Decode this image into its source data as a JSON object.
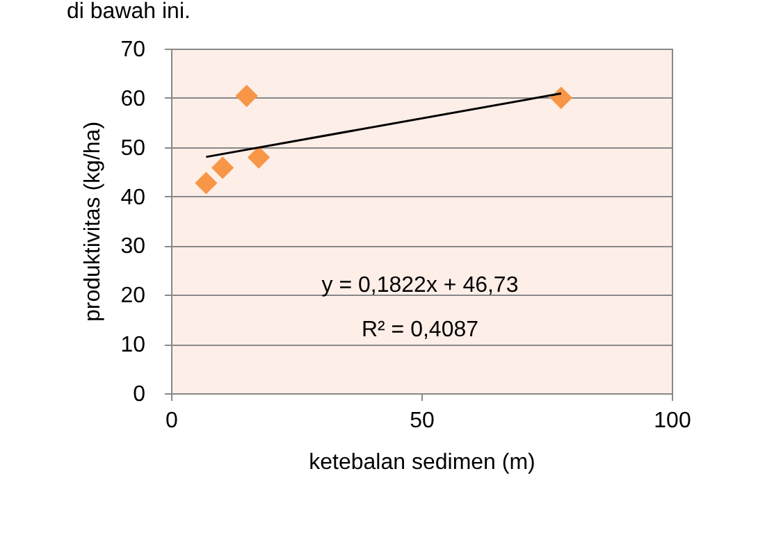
{
  "chart_data": {
    "type": "scatter",
    "xlabel": "ketebalan sedimen (m)",
    "ylabel": "produktivitas (kg/ha)",
    "annotations": [
      "di bawah ini.",
      "y = 0,1822x + 46,73",
      "R² = 0,4087"
    ],
    "series": [
      {
        "type": "scatter",
        "color": "#f79646",
        "marker": "diamond",
        "x": [
          7.0,
          10.3,
          15.1,
          17.5,
          77.9
        ],
        "values": [
          42.7,
          45.8,
          60.4,
          47.9,
          60.0
        ]
      },
      {
        "type": "line",
        "color": "#000000",
        "marker": "none",
        "line_style": "solid",
        "x": [
          7.0,
          77.9
        ],
        "values": [
          48.0,
          60.9
        ]
      }
    ],
    "xlim": [
      0,
      100
    ],
    "xticks": [
      0,
      50,
      100
    ],
    "ylim": [
      0,
      70
    ],
    "yticks": [
      0,
      10,
      20,
      30,
      40,
      50,
      60,
      70
    ],
    "grid": "y"
  }
}
